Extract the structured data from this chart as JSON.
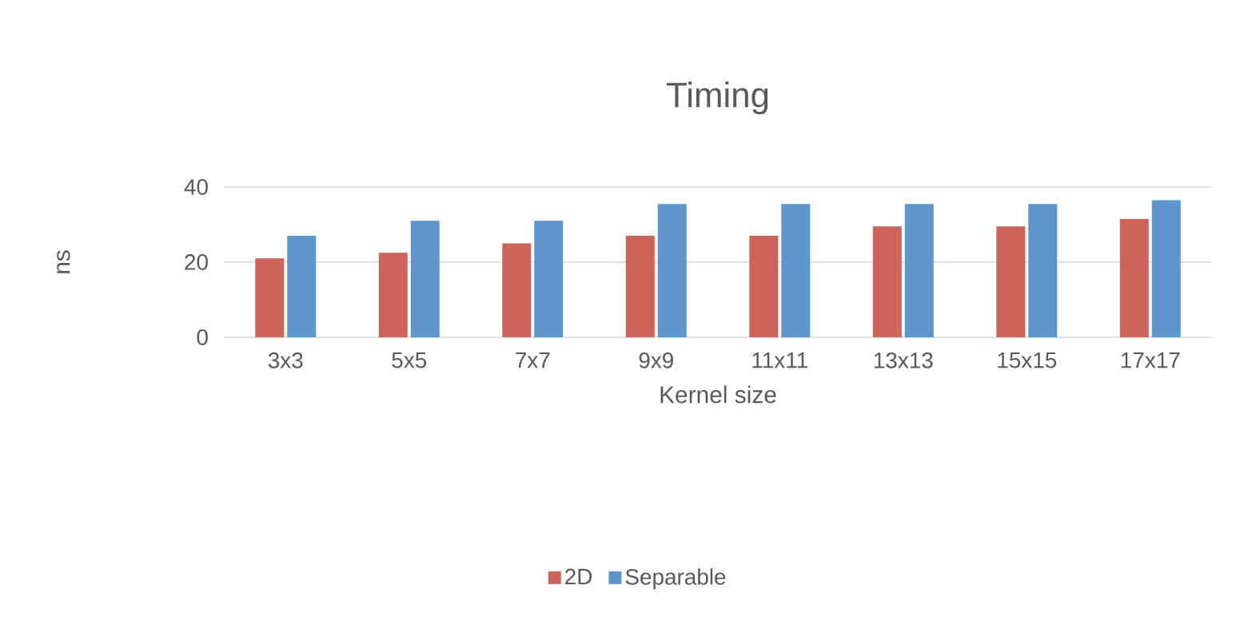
{
  "chart_data": {
    "type": "bar",
    "title": "Timing",
    "xlabel": "Kernel size",
    "ylabel": "ns",
    "categories": [
      "3x3",
      "5x5",
      "7x7",
      "9x9",
      "11x11",
      "13x13",
      "15x15",
      "17x17"
    ],
    "series": [
      {
        "name": "2D",
        "color": "#cc645a",
        "values": [
          21,
          22.5,
          25,
          27,
          27,
          29.5,
          29.5,
          31.5
        ]
      },
      {
        "name": "Separable",
        "color": "#5e95cb",
        "values": [
          27,
          31,
          31,
          35.5,
          35.5,
          35.5,
          35.5,
          36.5
        ]
      }
    ],
    "ylim": [
      0,
      40
    ],
    "yticks": [
      0,
      20,
      40
    ],
    "grid": "y",
    "legend": "bottom"
  }
}
